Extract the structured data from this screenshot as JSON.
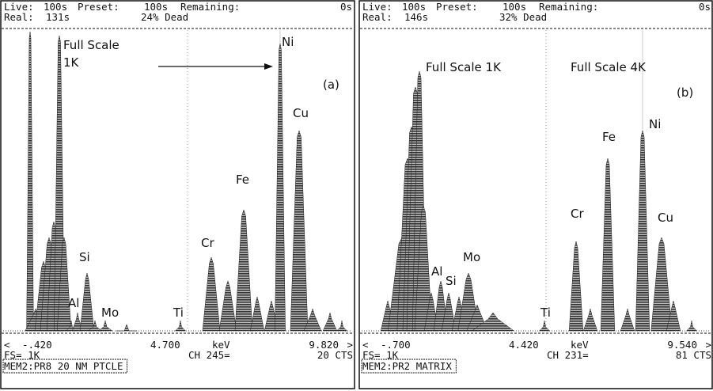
{
  "panels": [
    {
      "header": {
        "live_label": "Live:",
        "live": "100s",
        "preset_label": "Preset:",
        "preset": "100s",
        "remaining_label": "Remaining:",
        "remaining": "0s",
        "real_label": "Real:",
        "real": "131s",
        "dead": "24% Dead"
      },
      "annotations": [
        "Full Scale",
        "1K",
        "Ni",
        "(a)",
        "Cu",
        "Fe",
        "Cr",
        "Si",
        "Al",
        "Mo",
        "Ti"
      ],
      "footer": {
        "lt": "<",
        "start": "-.420",
        "mid": "4.700",
        "unit": "keV",
        "end": "9.820",
        "gt": ">",
        "fs": "FS= 1K",
        "ch": "CH 245=",
        "cts": "20 CTS",
        "mem": "MEM2:PR8 20 NM PTCLE"
      }
    },
    {
      "header": {
        "live_label": "Live:",
        "live": "100s",
        "preset_label": "Preset:",
        "preset": "100s",
        "remaining_label": "Remaining:",
        "remaining": "0s",
        "real_label": "Real:",
        "real": "146s",
        "dead": "32% Dead"
      },
      "annotations": [
        "Full Scale 1K",
        "Full Scale 4K",
        "(b)",
        "Ni",
        "Fe",
        "Cu",
        "Cr",
        "Mo",
        "Al",
        "Si",
        "Ti"
      ],
      "footer": {
        "lt": "<",
        "start": "-.700",
        "mid": "4.420",
        "unit": "keV",
        "end": "9.540",
        "gt": ">",
        "fs": "FS= 1K",
        "ch": "CH 231=",
        "cts": "81 CTS",
        "mem": "MEM2:PR2 MATRIX"
      }
    }
  ]
}
